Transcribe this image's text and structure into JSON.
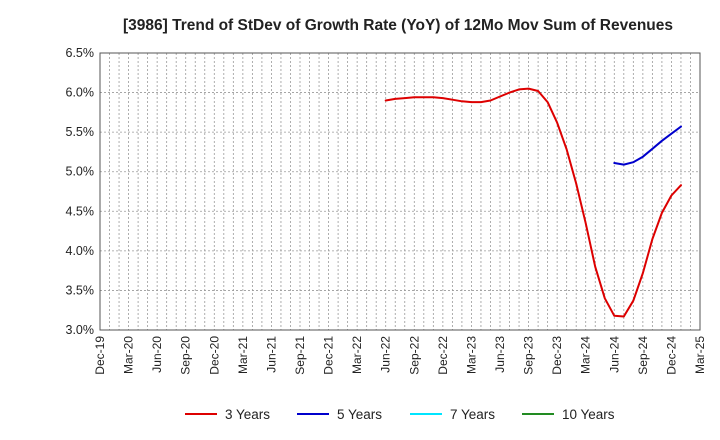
{
  "chart_data": {
    "type": "line",
    "title": "[3986]  Trend of StDev of Growth Rate (YoY) of 12Mo Mov Sum of Revenues",
    "xlabel": "",
    "ylabel": "",
    "ylim": [
      3.0,
      6.5
    ],
    "y_ticks": [
      {
        "value": 6.5,
        "label": "6.5%"
      },
      {
        "value": 6.0,
        "label": "6.0%"
      },
      {
        "value": 5.5,
        "label": "5.5%"
      },
      {
        "value": 5.0,
        "label": "5.0%"
      },
      {
        "value": 4.5,
        "label": "4.5%"
      },
      {
        "value": 4.0,
        "label": "4.0%"
      },
      {
        "value": 3.5,
        "label": "3.5%"
      },
      {
        "value": 3.0,
        "label": "3.0%"
      }
    ],
    "x_ticks": [
      "Dec-19",
      "Mar-20",
      "Jun-20",
      "Sep-20",
      "Dec-20",
      "Mar-21",
      "Jun-21",
      "Sep-21",
      "Dec-21",
      "Mar-22",
      "Jun-22",
      "Sep-22",
      "Dec-22",
      "Mar-23",
      "Jun-23",
      "Sep-23",
      "Dec-23",
      "Mar-24",
      "Jun-24",
      "Sep-24",
      "Dec-24",
      "Mar-25"
    ],
    "grid": true,
    "legend_position": "bottom",
    "series": [
      {
        "name": "3 Years",
        "color": "#dd0000",
        "points": [
          [
            30,
            5.9
          ],
          [
            31,
            5.92
          ],
          [
            32,
            5.93
          ],
          [
            33,
            5.94
          ],
          [
            34,
            5.94
          ],
          [
            35,
            5.94
          ],
          [
            36,
            5.93
          ],
          [
            37,
            5.91
          ],
          [
            38,
            5.89
          ],
          [
            39,
            5.88
          ],
          [
            40,
            5.88
          ],
          [
            41,
            5.9
          ],
          [
            42,
            5.95
          ],
          [
            43,
            6.0
          ],
          [
            44,
            6.04
          ],
          [
            45,
            6.05
          ],
          [
            46,
            6.02
          ],
          [
            47,
            5.88
          ],
          [
            48,
            5.62
          ],
          [
            49,
            5.28
          ],
          [
            50,
            4.85
          ],
          [
            51,
            4.35
          ],
          [
            52,
            3.8
          ],
          [
            53,
            3.4
          ],
          [
            54,
            3.18
          ],
          [
            55,
            3.17
          ],
          [
            56,
            3.37
          ],
          [
            57,
            3.72
          ],
          [
            58,
            4.15
          ],
          [
            59,
            4.48
          ],
          [
            60,
            4.7
          ],
          [
            61,
            4.83
          ]
        ]
      },
      {
        "name": "5 Years",
        "color": "#0000cc",
        "points": [
          [
            54,
            5.11
          ],
          [
            55,
            5.09
          ],
          [
            56,
            5.12
          ],
          [
            57,
            5.19
          ],
          [
            58,
            5.29
          ],
          [
            59,
            5.39
          ],
          [
            60,
            5.48
          ],
          [
            61,
            5.57
          ]
        ]
      },
      {
        "name": "7 Years",
        "color": "#00e5ff",
        "points": []
      },
      {
        "name": "10 Years",
        "color": "#228b22",
        "points": []
      }
    ]
  }
}
